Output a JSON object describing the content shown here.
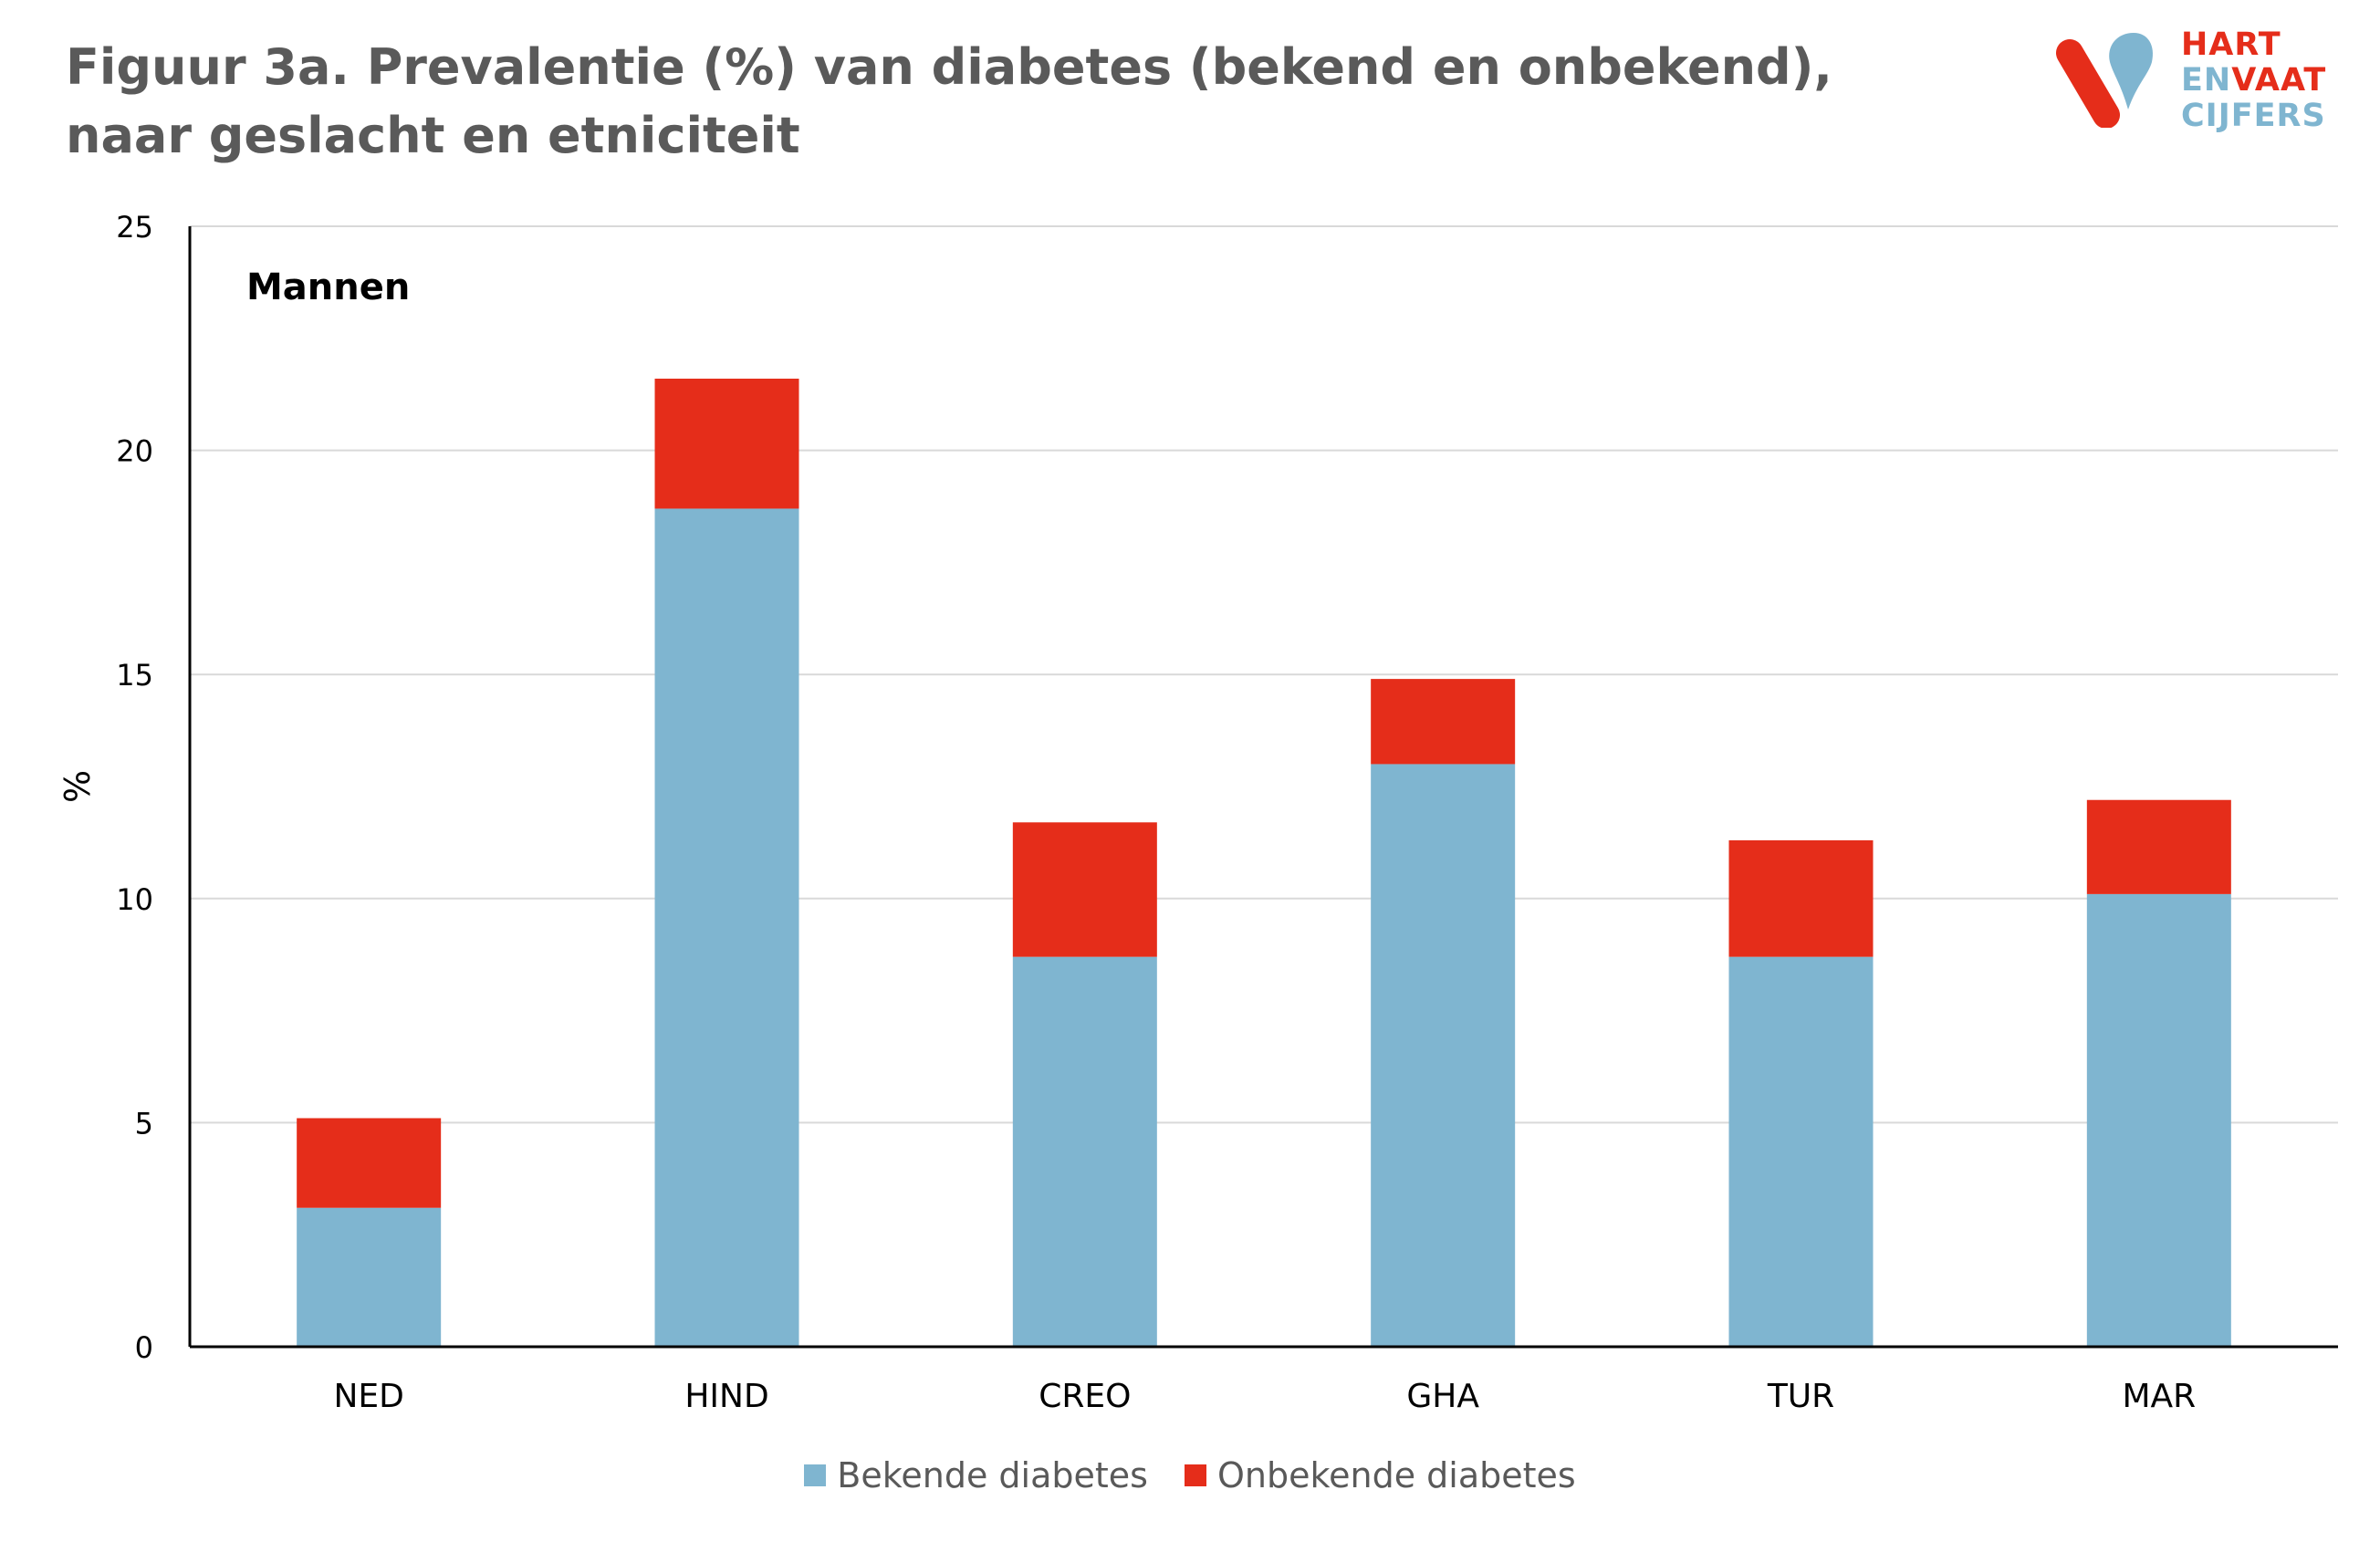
{
  "title": "Figuur 3a. Prevalentie (%) van diabetes (bekend en onbekend), naar geslacht en etniciteit",
  "logo": {
    "line1": "HART",
    "line2a": "EN",
    "line2b": "VAAT",
    "line3": "CIJFERS",
    "colors": {
      "red": "#e52d1a",
      "blue": "#7fb5d0"
    }
  },
  "chart_data": {
    "type": "bar",
    "stacked": true,
    "panel_label": "Mannen",
    "categories": [
      "NED",
      "HIND",
      "CREO",
      "GHA",
      "TUR",
      "MAR"
    ],
    "series": [
      {
        "name": "Bekende diabetes",
        "color": "#7fb5d0",
        "values": [
          3.1,
          18.7,
          8.7,
          13.0,
          8.7,
          10.1
        ]
      },
      {
        "name": "Onbekende diabetes",
        "color": "#e52d1a",
        "values": [
          2.0,
          2.9,
          3.0,
          1.9,
          2.6,
          2.1
        ]
      }
    ],
    "ylabel": "%",
    "ylim": [
      0,
      25
    ],
    "yticks": [
      0,
      5,
      10,
      15,
      20,
      25
    ],
    "grid": true,
    "legend_position": "bottom"
  }
}
